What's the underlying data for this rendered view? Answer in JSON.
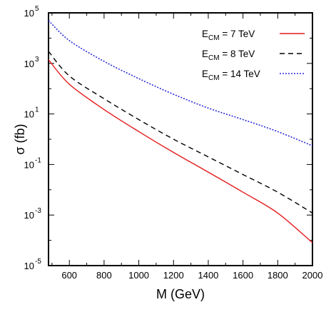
{
  "chart_data": {
    "type": "line",
    "xlabel": "M (GeV)",
    "ylabel": "σ (fb)",
    "xlim": [
      480,
      2000
    ],
    "ylim": [
      1e-05,
      100000.0
    ],
    "yscale": "log",
    "grid": false,
    "legend_position": "top-right",
    "x_ticks": [
      600,
      800,
      1000,
      1200,
      1400,
      1600,
      1800,
      2000
    ],
    "y_ticks": [
      {
        "value": 1e-05,
        "base": "10",
        "exp": "-5"
      },
      {
        "value": 0.001,
        "base": "10",
        "exp": "-3"
      },
      {
        "value": 0.1,
        "base": "10",
        "exp": "-1"
      },
      {
        "value": 10,
        "base": "10",
        "exp": "1"
      },
      {
        "value": 1000,
        "base": "10",
        "exp": "3"
      },
      {
        "value": 100000,
        "base": "10",
        "exp": "5"
      }
    ],
    "series": [
      {
        "name_main": "E",
        "name_sub": "CM",
        "name_rest": " =  7 TeV",
        "color": "#e41a1c",
        "dash": "",
        "x": [
          480,
          600,
          800,
          1000,
          1200,
          1400,
          1600,
          1800,
          2000
        ],
        "y": [
          1400,
          150,
          15,
          2,
          0.3,
          0.05,
          0.008,
          0.0012,
          8e-05
        ]
      },
      {
        "name_main": "E",
        "name_sub": "CM",
        "name_rest": " =  8 TeV",
        "color": "#000000",
        "dash": "7,5",
        "x": [
          480,
          600,
          800,
          1000,
          1200,
          1400,
          1600,
          1800,
          2000
        ],
        "y": [
          3000,
          320,
          40,
          6,
          1,
          0.2,
          0.04,
          0.008,
          0.0012
        ]
      },
      {
        "name_main": "E",
        "name_sub": "CM",
        "name_rest": " = 14 TeV",
        "color": "#2a2ad8",
        "dash": "2,2",
        "x": [
          480,
          600,
          800,
          1000,
          1200,
          1400,
          1600,
          1800,
          2000
        ],
        "y": [
          50000,
          8000,
          1200,
          250,
          60,
          17,
          6,
          2,
          0.55
        ]
      }
    ]
  }
}
